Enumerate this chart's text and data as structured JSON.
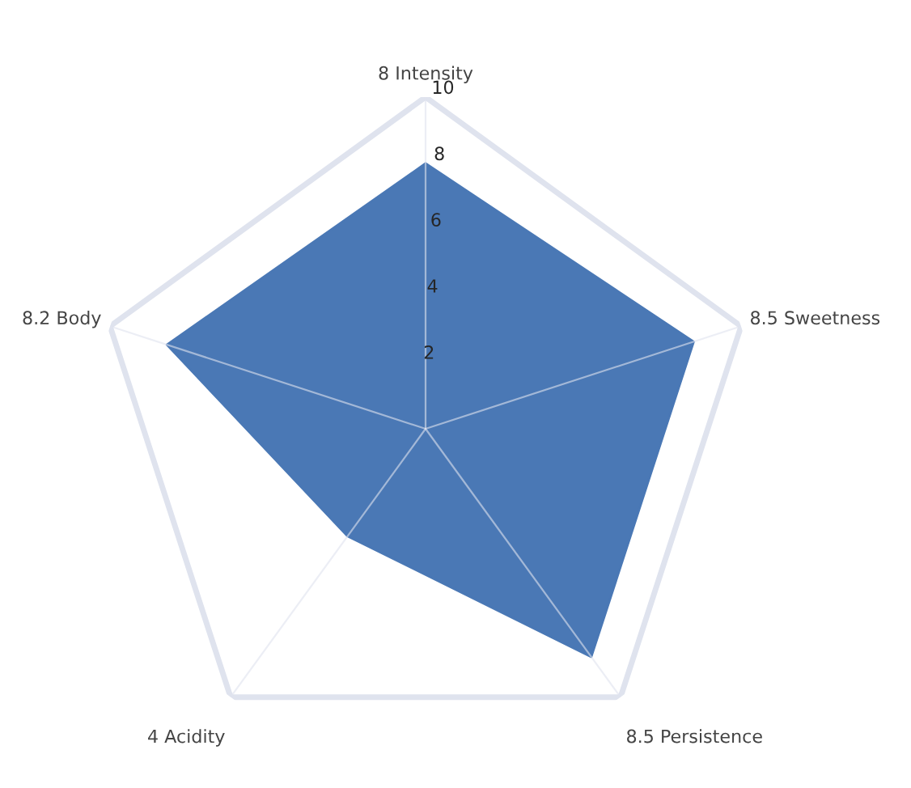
{
  "chart_data": {
    "type": "radar",
    "categories": [
      "8 Intensity",
      "8.5 Sweetness",
      "8.5 Persistence",
      "4 Acidity",
      "8.2 Body"
    ],
    "series": [
      {
        "color": "#4a78b5",
        "values": [
          8,
          8.5,
          8.5,
          4,
          8.2
        ]
      }
    ],
    "ylim": [
      0,
      10
    ],
    "yticks": [
      2,
      4,
      6,
      8,
      10
    ],
    "grid": "x"
  }
}
